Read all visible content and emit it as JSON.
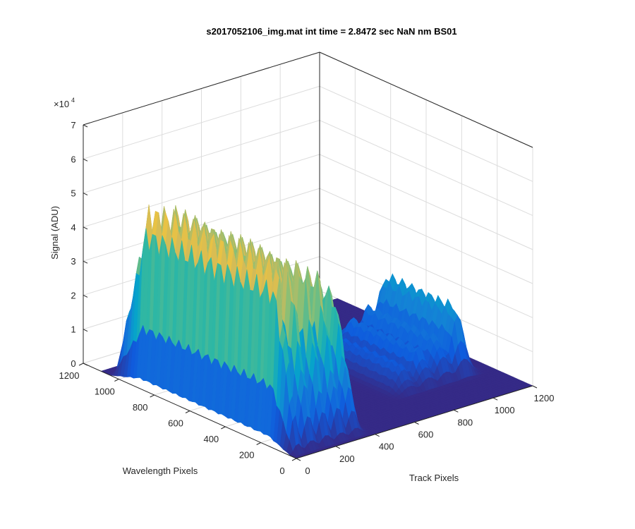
{
  "chart_data": {
    "type": "surface",
    "title": "s2017052106_img.mat int time = 2.8472 sec  NaN nm BS01",
    "xlabel": "Track Pixels",
    "ylabel": "Wavelength Pixels",
    "zlabel": "Signal (ADU)",
    "z_multiplier_label": "×10",
    "z_multiplier_exponent": "4",
    "xlim": [
      0,
      1200
    ],
    "ylim": [
      0,
      1200
    ],
    "zlim": [
      0,
      70000
    ],
    "x_ticks": [
      "0",
      "200",
      "400",
      "600",
      "800",
      "1000",
      "1200"
    ],
    "y_ticks": [
      "0",
      "200",
      "400",
      "600",
      "800",
      "1000",
      "1200"
    ],
    "z_ticks": [
      "0",
      "1",
      "2",
      "3",
      "4",
      "5",
      "6",
      "7"
    ],
    "grid": true,
    "colormap": "parula",
    "colormap_colors": [
      "#352a87",
      "#0f5cdd",
      "#1481d6",
      "#06a4ca",
      "#2eb7a4",
      "#87bf77",
      "#d1bb59",
      "#fec832",
      "#f9fb0e"
    ],
    "series": [
      {
        "x_center": 40,
        "x_width": 30,
        "y_range": [
          30,
          1050
        ],
        "peak": 57000
      },
      {
        "x_center": 110,
        "x_width": 40,
        "y_range": [
          30,
          1050
        ],
        "peak": 54000
      },
      {
        "x_center": 185,
        "x_width": 40,
        "y_range": [
          30,
          1050
        ],
        "peak": 52000
      },
      {
        "x_center": 260,
        "x_width": 40,
        "y_range": [
          30,
          1050
        ],
        "peak": 48000
      },
      {
        "x_center": 335,
        "x_width": 40,
        "y_range": [
          30,
          1050
        ],
        "peak": 42000
      },
      {
        "x_center": 775,
        "x_width": 60,
        "y_range": [
          200,
          750
        ],
        "peak": 8000
      },
      {
        "x_center": 870,
        "x_width": 60,
        "y_range": [
          200,
          750
        ],
        "peak": 11000
      },
      {
        "x_center": 960,
        "x_width": 60,
        "y_range": [
          200,
          750
        ],
        "peak": 13000
      },
      {
        "x_center": 1050,
        "x_width": 60,
        "y_range": [
          200,
          750
        ],
        "peak": 21000
      }
    ],
    "baseline": 0
  }
}
